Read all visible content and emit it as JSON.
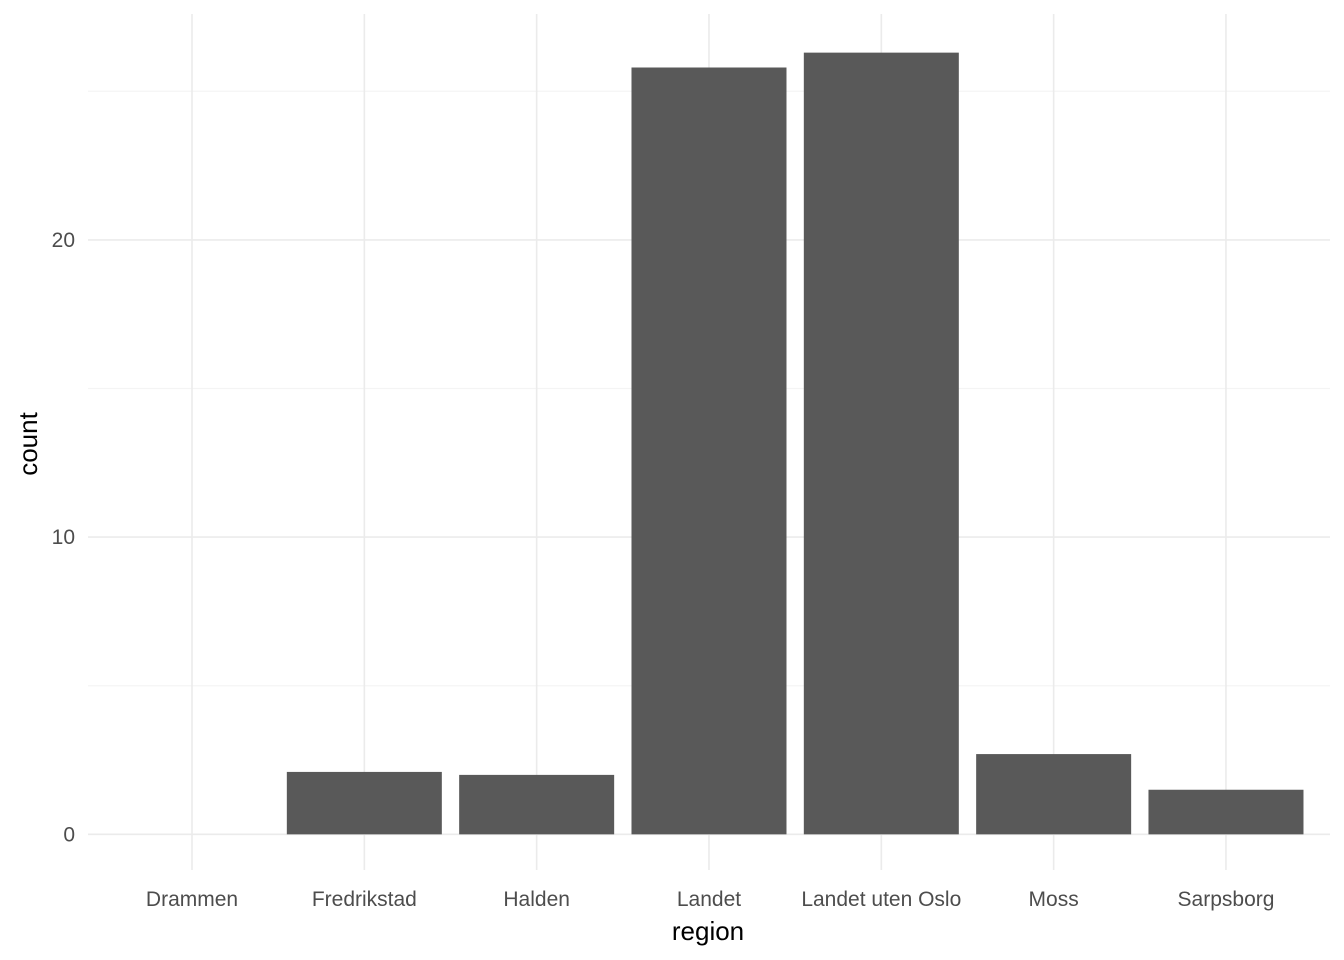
{
  "chart_data": {
    "type": "bar",
    "title": "",
    "xlabel": "region",
    "ylabel": "count",
    "categories": [
      "Drammen",
      "Fredrikstad",
      "Halden",
      "Landet",
      "Landet uten Oslo",
      "Moss",
      "Sarpsborg"
    ],
    "values": [
      0,
      2.1,
      2.0,
      25.8,
      26.3,
      2.7,
      1.5
    ],
    "ylim": [
      -1.2,
      27.6
    ],
    "y_ticks": [
      0,
      10,
      20
    ],
    "y_tick_labels": [
      "0",
      "10",
      "20"
    ],
    "grid": true,
    "legend": "none",
    "colors": {
      "bar": "#595959",
      "grid_major": "#ebebeb",
      "grid_minor": "#f4f4f4",
      "background": "#ffffff"
    }
  }
}
